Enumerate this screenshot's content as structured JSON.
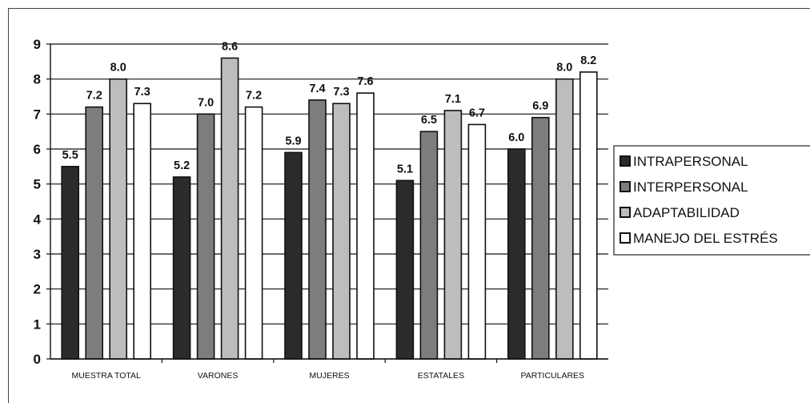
{
  "chart_data": {
    "type": "bar",
    "categories": [
      "MUESTRA TOTAL",
      "VARONES",
      "MUJERES",
      "ESTATALES",
      "PARTICULARES"
    ],
    "series": [
      {
        "name": "INTRAPERSONAL",
        "values": [
          5.5,
          5.2,
          5.9,
          5.1,
          6.0
        ],
        "labels": [
          "5.5",
          "5.2",
          "5.9",
          "5.1",
          "6.0"
        ],
        "color": "#2b2b2b"
      },
      {
        "name": "INTERPERSONAL",
        "values": [
          7.2,
          7.0,
          7.4,
          6.5,
          6.9
        ],
        "labels": [
          "7.2",
          "7.0",
          "7.4",
          "6.5",
          "6.9"
        ],
        "color": "#7d7d7d"
      },
      {
        "name": "ADAPTABILIDAD",
        "values": [
          8.0,
          8.6,
          7.3,
          7.1,
          8.0
        ],
        "labels": [
          "8.0",
          "8.6",
          "7.3",
          "7.1",
          "8.0"
        ],
        "color": "#bdbdbd"
      },
      {
        "name": "MANEJO DEL ESTRÉS",
        "values": [
          7.3,
          7.2,
          7.6,
          6.7,
          8.2
        ],
        "labels": [
          "7.3",
          "7.2",
          "7.6",
          "6.7",
          "8.2"
        ],
        "color": "#ffffff"
      }
    ],
    "ylim": [
      0,
      9
    ],
    "yticks": [
      "0",
      "1",
      "2",
      "3",
      "4",
      "5",
      "6",
      "7",
      "8",
      "9"
    ],
    "grid": true,
    "legend": "right",
    "title": "",
    "xlabel": "",
    "ylabel": ""
  }
}
